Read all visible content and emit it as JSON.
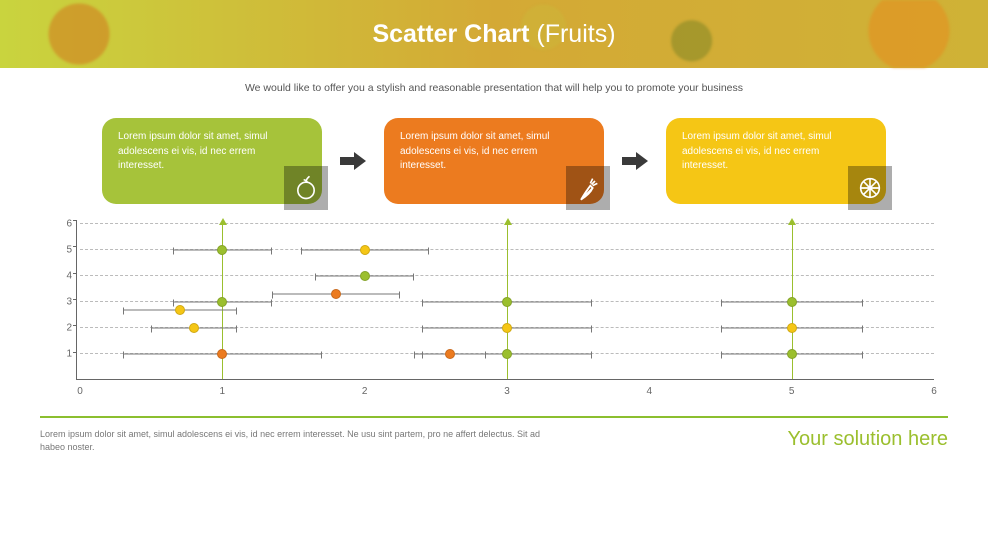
{
  "banner": {
    "title_bold": "Scatter Chart",
    "title_light": "(Fruits)"
  },
  "subtitle": "We would like to offer you a stylish and reasonable presentation that will help you to promote your business",
  "cards": [
    {
      "text": "Lorem ipsum dolor sit amet, simul adolescens ei vis, id nec errem interesset.",
      "bg": "#a6c33a",
      "icon_bg": "#5a6b1e",
      "icon": "apple"
    },
    {
      "text": "Lorem ipsum dolor sit amet, simul adolescens ei vis, id nec errem interesset.",
      "bg": "#ec7b1f",
      "icon_bg": "#a9541a",
      "icon": "carrot"
    },
    {
      "text": "Lorem ipsum dolor sit amet, simul adolescens ei vis, id nec errem interesset.",
      "bg": "#f5c615",
      "icon_bg": "#b08f14",
      "icon": "orange"
    }
  ],
  "chart": {
    "type": "scatter",
    "xlim": [
      0,
      6
    ],
    "ylim": [
      0,
      6
    ],
    "xticks": [
      0,
      1,
      2,
      3,
      4,
      5,
      6
    ],
    "yticks": [
      1,
      2,
      3,
      4,
      5,
      6
    ],
    "grid_color": "#bbbbbb",
    "axis_color": "#666666",
    "vline_color": "#9bbf2e",
    "vlines_x": [
      1,
      3,
      5
    ],
    "series": {
      "green": {
        "color": "#9bbf2e",
        "points": [
          {
            "x": 1,
            "y": 3,
            "err": 0.35
          },
          {
            "x": 1,
            "y": 5,
            "err": 0.35
          },
          {
            "x": 2,
            "y": 4,
            "err": 0.35
          },
          {
            "x": 3,
            "y": 1,
            "err": 0.6
          },
          {
            "x": 3,
            "y": 3,
            "err": 0.6
          },
          {
            "x": 5,
            "y": 1,
            "err": 0.5
          },
          {
            "x": 5,
            "y": 3,
            "err": 0.5
          }
        ]
      },
      "orange": {
        "color": "#ec7b1f",
        "points": [
          {
            "x": 1.8,
            "y": 3.3,
            "err": 0.45
          },
          {
            "x": 2.6,
            "y": 1,
            "err": 0.25
          },
          {
            "x": 1,
            "y": 1,
            "err": 0.7
          }
        ]
      },
      "yellow": {
        "color": "#f5c615",
        "points": [
          {
            "x": 0.7,
            "y": 2.7,
            "err": 0.4
          },
          {
            "x": 0.8,
            "y": 2,
            "err": 0.3
          },
          {
            "x": 2,
            "y": 5,
            "err": 0.45
          },
          {
            "x": 3,
            "y": 2,
            "err": 0.6
          },
          {
            "x": 5,
            "y": 2,
            "err": 0.5
          }
        ]
      }
    }
  },
  "divider_color": "#8bbf2f",
  "footer": {
    "left": "Lorem ipsum dolor sit amet, simul adolescens ei vis, id nec errem interesset. Ne usu sint partem, pro ne affert delectus. Sit ad habeo noster.",
    "right": "Your solution here",
    "right_color": "#9bbf2e"
  }
}
